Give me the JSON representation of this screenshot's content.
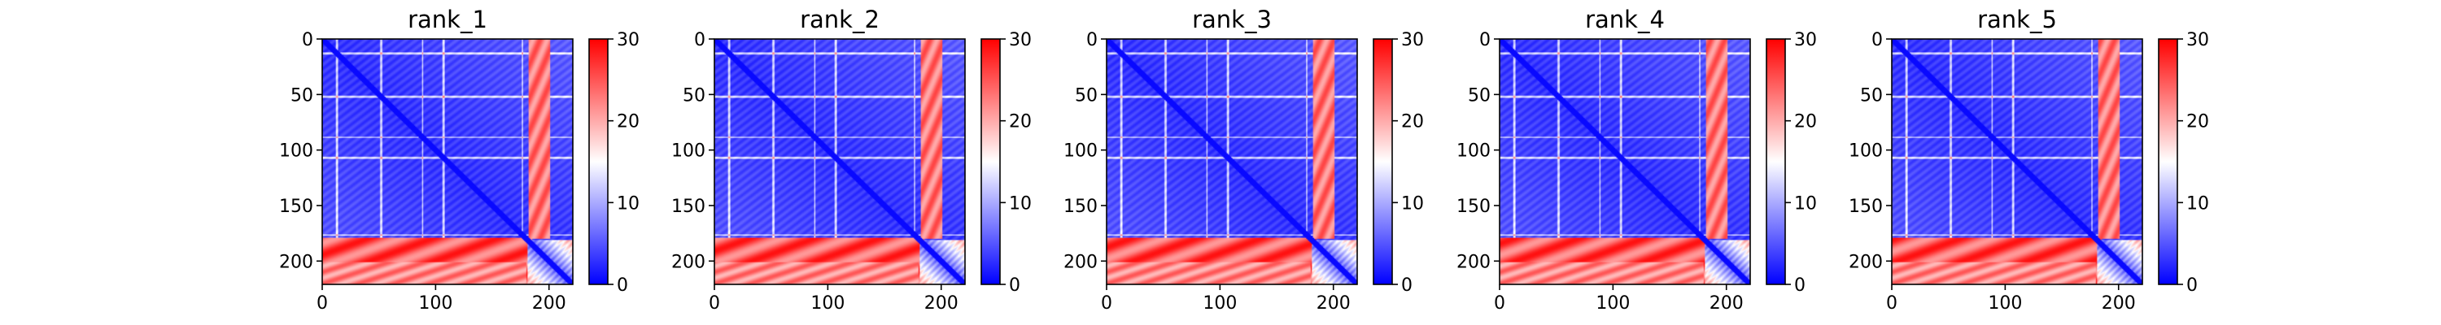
{
  "chart_data": [
    {
      "type": "heatmap",
      "title": "rank_1",
      "xlabel": "",
      "ylabel": "",
      "xlim": [
        0,
        221
      ],
      "ylim": [
        221,
        0
      ],
      "xticks": [
        0,
        100,
        200
      ],
      "yticks": [
        0,
        50,
        100,
        150,
        200
      ],
      "colorbar": {
        "min": 0,
        "max": 30,
        "ticks": [
          0,
          10,
          20,
          30
        ],
        "colormap": "bwr",
        "colors": [
          "#0000ff",
          "#ffffff",
          "#ff0000"
        ]
      }
    },
    {
      "type": "heatmap",
      "title": "rank_2",
      "xlabel": "",
      "ylabel": "",
      "xlim": [
        0,
        221
      ],
      "ylim": [
        221,
        0
      ],
      "xticks": [
        0,
        100,
        200
      ],
      "yticks": [
        0,
        50,
        100,
        150,
        200
      ],
      "colorbar": {
        "min": 0,
        "max": 30,
        "ticks": [
          0,
          10,
          20,
          30
        ],
        "colormap": "bwr",
        "colors": [
          "#0000ff",
          "#ffffff",
          "#ff0000"
        ]
      }
    },
    {
      "type": "heatmap",
      "title": "rank_3",
      "xlabel": "",
      "ylabel": "",
      "xlim": [
        0,
        221
      ],
      "ylim": [
        221,
        0
      ],
      "xticks": [
        0,
        100,
        200
      ],
      "yticks": [
        0,
        50,
        100,
        150,
        200
      ],
      "colorbar": {
        "min": 0,
        "max": 30,
        "ticks": [
          0,
          10,
          20,
          30
        ],
        "colormap": "bwr",
        "colors": [
          "#0000ff",
          "#ffffff",
          "#ff0000"
        ]
      }
    },
    {
      "type": "heatmap",
      "title": "rank_4",
      "xlabel": "",
      "ylabel": "",
      "xlim": [
        0,
        221
      ],
      "ylim": [
        221,
        0
      ],
      "xticks": [
        0,
        100,
        200
      ],
      "yticks": [
        0,
        50,
        100,
        150,
        200
      ],
      "colorbar": {
        "min": 0,
        "max": 30,
        "ticks": [
          0,
          10,
          20,
          30
        ],
        "colormap": "bwr",
        "colors": [
          "#0000ff",
          "#ffffff",
          "#ff0000"
        ]
      }
    },
    {
      "type": "heatmap",
      "title": "rank_5",
      "xlabel": "",
      "ylabel": "",
      "xlim": [
        0,
        221
      ],
      "ylim": [
        221,
        0
      ],
      "xticks": [
        0,
        100,
        200
      ],
      "yticks": [
        0,
        50,
        100,
        150,
        200
      ],
      "colorbar": {
        "min": 0,
        "max": 30,
        "ticks": [
          0,
          10,
          20,
          30
        ],
        "colormap": "bwr",
        "colors": [
          "#0000ff",
          "#ffffff",
          "#ff0000"
        ]
      }
    }
  ]
}
